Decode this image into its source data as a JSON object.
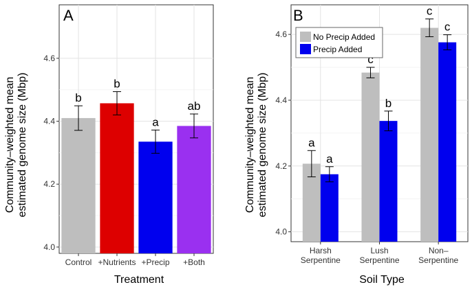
{
  "chart_data": [
    {
      "panel": "A",
      "type": "bar",
      "xlabel": "Treatment",
      "ylabel": [
        "Community–weighted mean",
        "estimated genome size (Mbp)"
      ],
      "ylim": [
        3.98,
        4.77
      ],
      "yticks": [
        "4.0",
        "4.2",
        "4.4",
        "4.6"
      ],
      "grid": true,
      "categories": [
        "Control",
        "+Nutrients",
        "+Precip",
        "+Both"
      ],
      "values": [
        4.41,
        4.457,
        4.335,
        4.385
      ],
      "errors": [
        0.039,
        0.037,
        0.037,
        0.038
      ],
      "letters": [
        "b",
        "b",
        "a",
        "ab"
      ],
      "colors": [
        "#bebebe",
        "#dd0000",
        "#0000ee",
        "#9a30f0"
      ]
    },
    {
      "panel": "B",
      "type": "bar",
      "xlabel": "Soil Type",
      "ylabel": [
        "Community–weighted mean",
        "estimated genome size (Mbp)"
      ],
      "ylim": [
        3.97,
        4.69
      ],
      "yticks": [
        "4.0",
        "4.2",
        "4.4",
        "4.6"
      ],
      "grid": true,
      "categories": [
        [
          "Harsh",
          "Serpentine"
        ],
        [
          "Lush",
          "Serpentine"
        ],
        [
          "Non–",
          "Serpentine"
        ]
      ],
      "legend_position": "top-left",
      "series": [
        {
          "name": "No Precip Added",
          "color": "#bebebe",
          "values": [
            4.207,
            4.484,
            4.62
          ],
          "errors": [
            0.04,
            0.016,
            0.027
          ],
          "letters": [
            "a",
            "c",
            "c"
          ]
        },
        {
          "name": "Precip Added",
          "color": "#0000ee",
          "values": [
            4.175,
            4.337,
            4.576
          ],
          "errors": [
            0.023,
            0.03,
            0.023
          ],
          "letters": [
            "a",
            "b",
            "c"
          ]
        }
      ]
    }
  ]
}
